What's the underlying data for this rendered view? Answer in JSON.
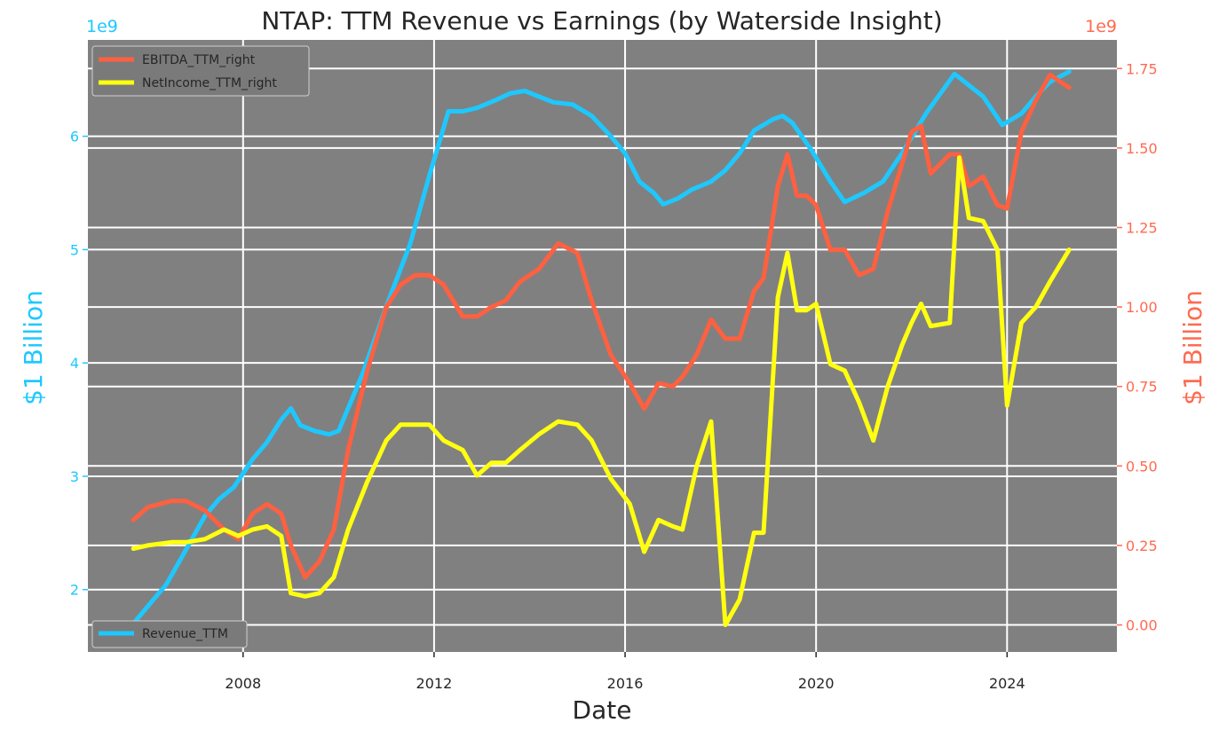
{
  "chart_data": {
    "type": "line",
    "title": "NTAP: TTM Revenue vs Earnings (by Waterside Insight)",
    "xlabel": "Date",
    "ylabel_left": "$1 Billion",
    "ylabel_right": "$1 Billion",
    "left_offset_label": "1e9",
    "right_offset_label": "1e9",
    "xlim": [
      2004.75,
      2026.3
    ],
    "ylim_left": [
      1.45,
      6.85
    ],
    "ylim_right": [
      -0.085,
      1.84
    ],
    "x_ticks": [
      2008,
      2012,
      2016,
      2020,
      2024
    ],
    "x_tick_labels": [
      "2008",
      "2012",
      "2016",
      "2020",
      "2024"
    ],
    "left_ticks": [
      2,
      3,
      4,
      5,
      6
    ],
    "left_tick_labels": [
      "2",
      "3",
      "4",
      "5",
      "6"
    ],
    "right_ticks": [
      0.0,
      0.25,
      0.5,
      0.75,
      1.0,
      1.25,
      1.5,
      1.75
    ],
    "right_tick_labels": [
      "0.00",
      "0.25",
      "0.50",
      "0.75",
      "1.00",
      "1.25",
      "1.50",
      "1.75"
    ],
    "legend_right": {
      "placement": "upper left",
      "entries": [
        "EBITDA_TTM_right",
        "NetIncome_TTM_right"
      ]
    },
    "legend_left": {
      "placement": "lower left",
      "entries": [
        "Revenue_TTM"
      ]
    },
    "colors": {
      "plot_bg": "#808080",
      "grid": "#ffffff",
      "revenue": "#1ec8ff",
      "ebitda": "#ff6040",
      "netincome": "#ffff10",
      "left_axis": "#1ec8ff",
      "right_axis": "#ff6a50",
      "text": "#262626"
    },
    "series": [
      {
        "name": "Revenue_TTM",
        "axis": "left",
        "x": [
          2005.7,
          2006.0,
          2006.4,
          2006.8,
          2007.2,
          2007.5,
          2007.8,
          2008.2,
          2008.5,
          2008.8,
          2009.0,
          2009.2,
          2009.5,
          2009.8,
          2010.0,
          2010.5,
          2011.0,
          2011.5,
          2011.9,
          2012.3,
          2012.6,
          2012.9,
          2013.3,
          2013.6,
          2013.9,
          2014.2,
          2014.5,
          2014.9,
          2015.3,
          2015.7,
          2016.0,
          2016.3,
          2016.6,
          2016.8,
          2017.1,
          2017.4,
          2017.8,
          2018.1,
          2018.4,
          2018.7,
          2019.1,
          2019.3,
          2019.5,
          2019.9,
          2020.3,
          2020.6,
          2021.0,
          2021.4,
          2021.8,
          2022.3,
          2022.9,
          2023.2,
          2023.5,
          2023.9,
          2024.3,
          2024.6,
          2024.9,
          2025.3
        ],
        "values": [
          1.7,
          1.85,
          2.05,
          2.35,
          2.65,
          2.8,
          2.9,
          3.15,
          3.3,
          3.5,
          3.6,
          3.45,
          3.4,
          3.37,
          3.4,
          3.9,
          4.5,
          5.05,
          5.65,
          6.22,
          6.22,
          6.25,
          6.32,
          6.38,
          6.4,
          6.35,
          6.3,
          6.28,
          6.18,
          6.0,
          5.85,
          5.6,
          5.5,
          5.4,
          5.45,
          5.53,
          5.6,
          5.7,
          5.85,
          6.05,
          6.15,
          6.18,
          6.12,
          5.88,
          5.6,
          5.42,
          5.5,
          5.6,
          5.85,
          6.2,
          6.55,
          6.45,
          6.35,
          6.1,
          6.2,
          6.35,
          6.48,
          6.57
        ]
      },
      {
        "name": "EBITDA_TTM_right",
        "axis": "right",
        "x": [
          2005.7,
          2006.0,
          2006.5,
          2006.8,
          2007.2,
          2007.6,
          2007.9,
          2008.2,
          2008.5,
          2008.8,
          2009.0,
          2009.3,
          2009.6,
          2009.9,
          2010.2,
          2010.6,
          2011.0,
          2011.3,
          2011.6,
          2011.9,
          2012.2,
          2012.6,
          2012.9,
          2013.2,
          2013.5,
          2013.8,
          2014.2,
          2014.6,
          2015.0,
          2015.3,
          2015.7,
          2016.1,
          2016.4,
          2016.7,
          2017.0,
          2017.2,
          2017.5,
          2017.8,
          2018.1,
          2018.4,
          2018.7,
          2018.9,
          2019.2,
          2019.4,
          2019.6,
          2019.8,
          2020.0,
          2020.3,
          2020.6,
          2020.9,
          2021.2,
          2021.5,
          2021.8,
          2022.0,
          2022.2,
          2022.4,
          2022.8,
          2023.0,
          2023.2,
          2023.5,
          2023.8,
          2024.0,
          2024.3,
          2024.6,
          2024.9,
          2025.3
        ],
        "values": [
          0.33,
          0.37,
          0.39,
          0.39,
          0.36,
          0.3,
          0.27,
          0.35,
          0.38,
          0.35,
          0.25,
          0.15,
          0.2,
          0.3,
          0.55,
          0.8,
          1.0,
          1.07,
          1.1,
          1.1,
          1.07,
          0.97,
          0.97,
          1.0,
          1.02,
          1.08,
          1.12,
          1.2,
          1.17,
          1.02,
          0.85,
          0.76,
          0.68,
          0.76,
          0.75,
          0.78,
          0.85,
          0.96,
          0.9,
          0.9,
          1.05,
          1.09,
          1.38,
          1.48,
          1.35,
          1.35,
          1.32,
          1.18,
          1.18,
          1.1,
          1.12,
          1.3,
          1.45,
          1.55,
          1.57,
          1.42,
          1.48,
          1.48,
          1.38,
          1.41,
          1.32,
          1.31,
          1.55,
          1.65,
          1.73,
          1.69
        ]
      },
      {
        "name": "NetIncome_TTM_right",
        "axis": "right",
        "x": [
          2005.7,
          2006.0,
          2006.5,
          2006.8,
          2007.2,
          2007.6,
          2007.9,
          2008.2,
          2008.5,
          2008.8,
          2009.0,
          2009.3,
          2009.6,
          2009.9,
          2010.2,
          2010.6,
          2011.0,
          2011.3,
          2011.6,
          2011.9,
          2012.2,
          2012.6,
          2012.9,
          2013.2,
          2013.5,
          2013.8,
          2014.2,
          2014.6,
          2015.0,
          2015.3,
          2015.7,
          2016.1,
          2016.4,
          2016.7,
          2017.0,
          2017.2,
          2017.5,
          2017.8,
          2018.1,
          2018.4,
          2018.7,
          2018.9,
          2019.2,
          2019.4,
          2019.6,
          2019.8,
          2020.0,
          2020.3,
          2020.6,
          2020.9,
          2021.2,
          2021.5,
          2021.8,
          2022.0,
          2022.2,
          2022.4,
          2022.8,
          2023.0,
          2023.2,
          2023.5,
          2023.8,
          2024.0,
          2024.3,
          2024.6,
          2024.9,
          2025.3
        ],
        "values": [
          0.24,
          0.25,
          0.26,
          0.26,
          0.27,
          0.3,
          0.28,
          0.3,
          0.31,
          0.28,
          0.1,
          0.09,
          0.1,
          0.15,
          0.3,
          0.45,
          0.58,
          0.63,
          0.63,
          0.63,
          0.58,
          0.55,
          0.47,
          0.51,
          0.51,
          0.55,
          0.6,
          0.64,
          0.63,
          0.58,
          0.46,
          0.38,
          0.23,
          0.33,
          0.31,
          0.3,
          0.5,
          0.64,
          0.0,
          0.08,
          0.29,
          0.29,
          1.03,
          1.17,
          0.99,
          0.99,
          1.01,
          0.82,
          0.8,
          0.7,
          0.58,
          0.75,
          0.88,
          0.95,
          1.01,
          0.94,
          0.95,
          1.47,
          1.28,
          1.27,
          1.18,
          0.69,
          0.95,
          1.0,
          1.08,
          1.18
        ]
      }
    ]
  }
}
